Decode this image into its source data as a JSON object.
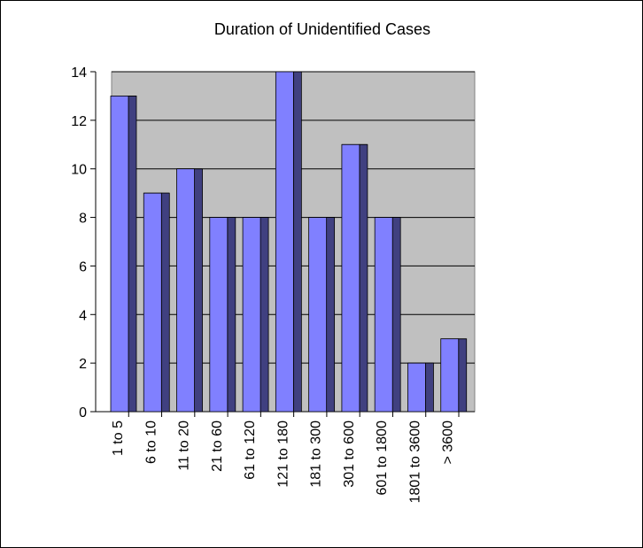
{
  "chart_data": {
    "type": "bar",
    "title": "Duration of Unidentified Cases",
    "xlabel": "",
    "ylabel": "",
    "categories": [
      "1 to 5",
      "6 to 10",
      "11 to 20",
      "21 to 60",
      "61 to 120",
      "121 to 180",
      "181 to 300",
      "301 to 600",
      "601 to 1800",
      "1801 to 3600",
      "> 3600"
    ],
    "values": [
      13,
      9,
      10,
      8,
      8,
      14,
      8,
      11,
      8,
      2,
      3
    ],
    "ylim": [
      0,
      14
    ],
    "yticks": [
      0,
      2,
      4,
      6,
      8,
      10,
      12,
      14
    ],
    "grid": true,
    "legend": "none",
    "colors": {
      "plot_background": "#c0c0c0",
      "bar_front": "#8080ff",
      "bar_side": "#404080",
      "bar_top": "#6060c0",
      "gridline": "#000000"
    }
  }
}
